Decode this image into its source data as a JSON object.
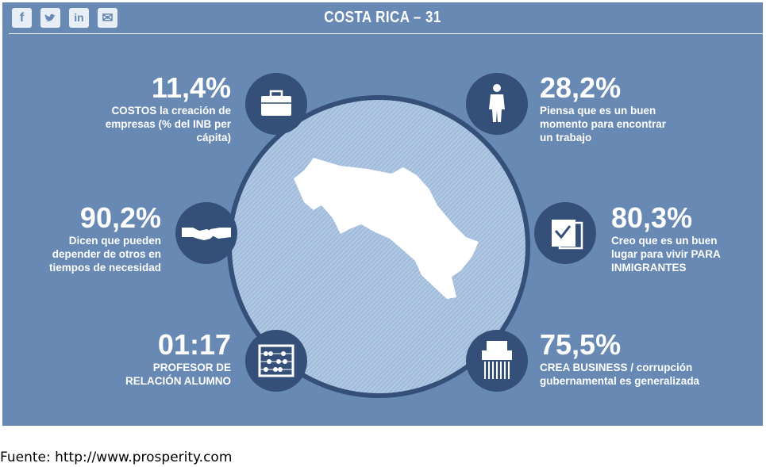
{
  "header": {
    "title": "COSTA RICA – 31",
    "social": [
      {
        "glyph": "f",
        "icon": "facebook-icon"
      },
      {
        "glyph": "t",
        "icon": "twitter-icon"
      },
      {
        "glyph": "in",
        "icon": "linkedin-icon"
      },
      {
        "glyph": "✉",
        "icon": "email-icon"
      }
    ]
  },
  "stats": [
    {
      "value": "11,4%",
      "lines": [
        "COSTOS la creación de",
        "empresas (% del INB per",
        "cápita)"
      ],
      "icon": "briefcase-icon"
    },
    {
      "value": "28,2%",
      "lines": [
        "Piensa que es un buen",
        "momento para encontrar",
        "un trabajo"
      ],
      "icon": "businessman-icon"
    },
    {
      "value": "90,2%",
      "lines": [
        "Dicen que pueden",
        "depender de otros en",
        "tiempos de necesidad"
      ],
      "icon": "handshake-icon"
    },
    {
      "value": "80,3%",
      "lines": [
        "Creo que es un buen",
        "lugar para vivir PARA",
        "INMIGRANTES"
      ],
      "icon": "passport-icon"
    },
    {
      "value": "01:17",
      "lines": [
        "PROFESOR DE",
        "RELACIÓN ALUMNO"
      ],
      "icon": "abacus-icon"
    },
    {
      "value": "75,5%",
      "lines": [
        "CREA BUSINESS / corrupción",
        "gubernamental es generalizada"
      ],
      "icon": "shredder-icon"
    }
  ],
  "colors": {
    "panel": "#6789b4",
    "dark": "#344f78",
    "white": "#ffffff"
  },
  "source": "Fuente: http://www.prosperity.com"
}
